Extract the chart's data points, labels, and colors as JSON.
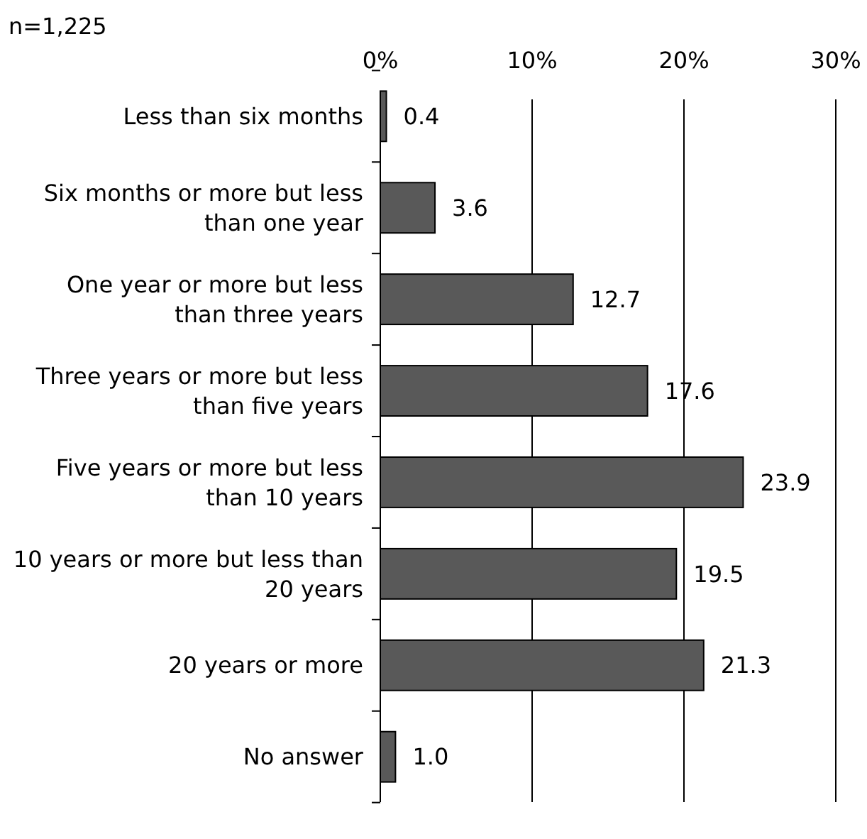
{
  "chart_data": {
    "type": "bar",
    "orientation": "horizontal",
    "categories": [
      "Less than six months",
      "Six months or more but less than one year",
      "One year or more but less than three years",
      "Three years or more but less than five years",
      "Five years or more but less than 10 years",
      "10 years or more but less than 20 years",
      "20 years or more",
      "No answer"
    ],
    "values": [
      0.4,
      3.6,
      12.7,
      17.6,
      23.9,
      19.5,
      21.3,
      1.0
    ],
    "value_labels": [
      "0.4",
      "3.6",
      "12.7",
      "17.6",
      "23.9",
      "19.5",
      "21.3",
      "1.0"
    ],
    "color": "#595959",
    "xlim": [
      0,
      30
    ],
    "xticks": [
      {
        "value": 0,
        "label": "0%"
      },
      {
        "value": 10,
        "label": "10%"
      },
      {
        "value": 20,
        "label": "20%"
      },
      {
        "value": 30,
        "label": "30%"
      }
    ],
    "grid": "x",
    "annotations": [
      "n=1,225"
    ]
  }
}
